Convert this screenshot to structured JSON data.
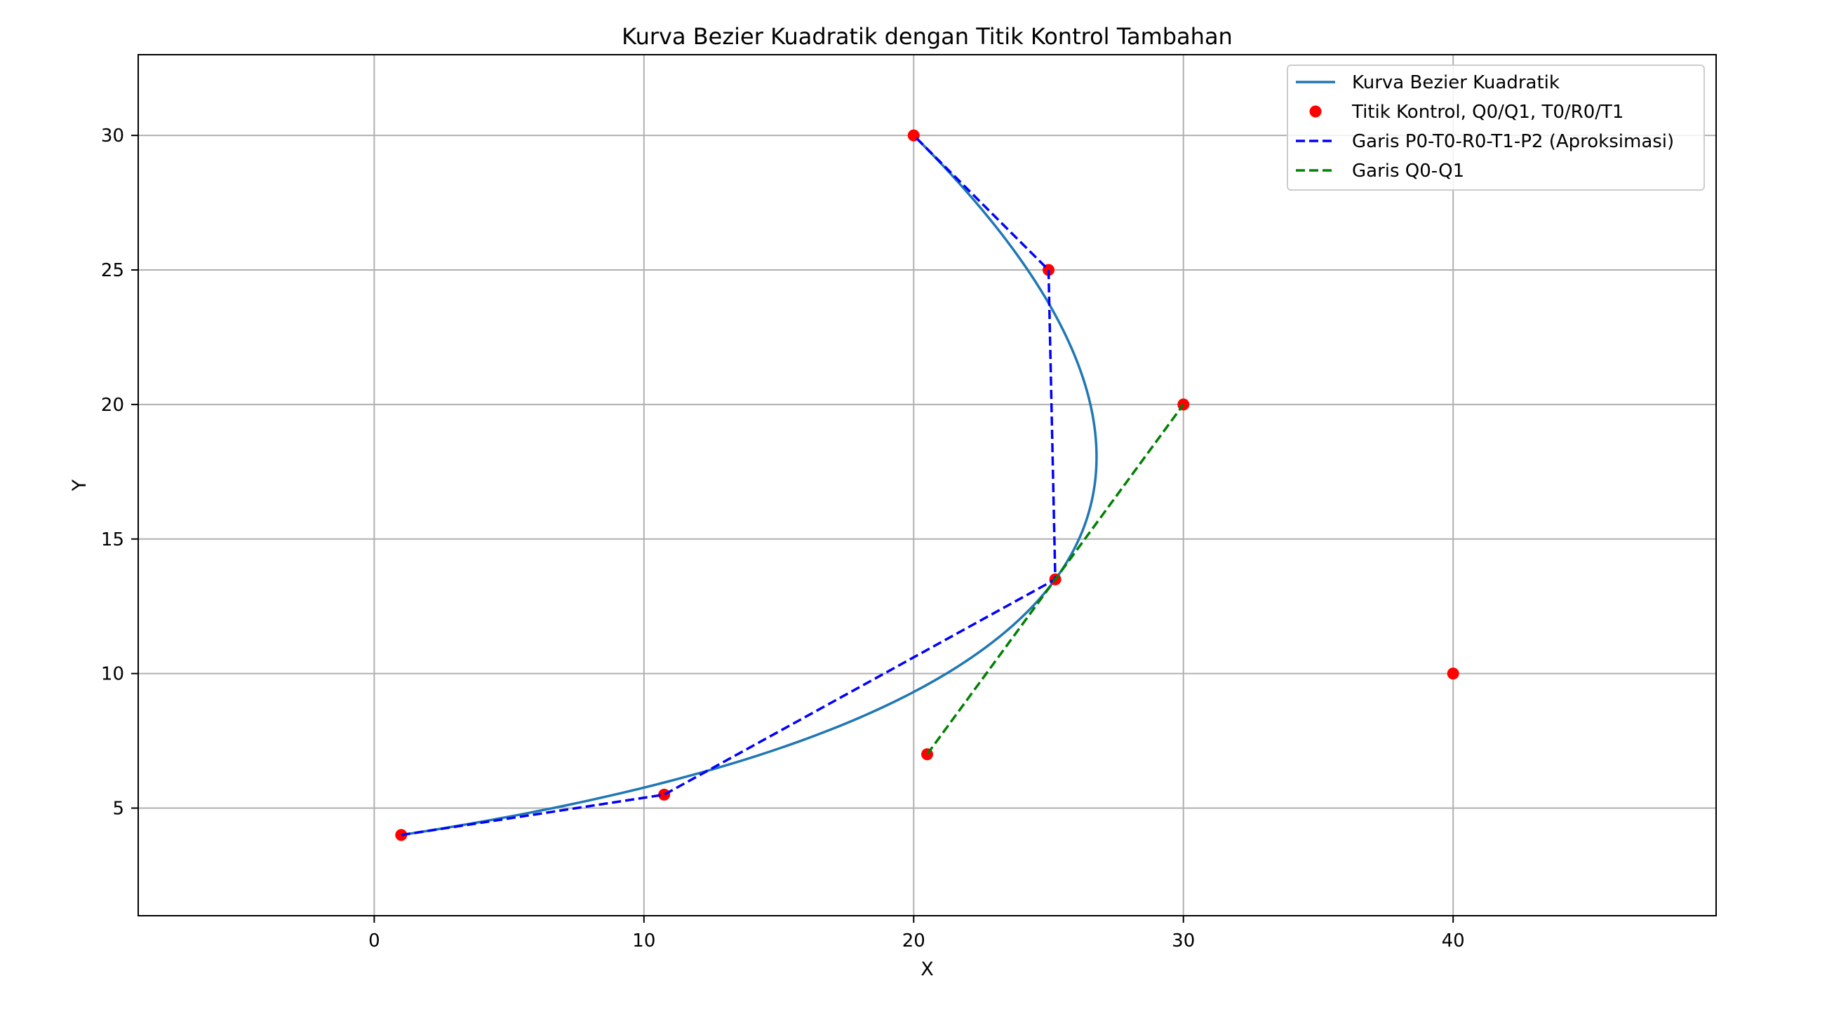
{
  "chart_data": {
    "type": "line",
    "title": "Kurva Bezier Kuadratik dengan Titik Kontrol Tambahan",
    "xlabel": "X",
    "ylabel": "Y",
    "xlim": [
      -8.75,
      49.75
    ],
    "ylim": [
      1.0,
      33.0
    ],
    "xticks": [
      0,
      10,
      20,
      30,
      40
    ],
    "yticks": [
      5,
      10,
      15,
      20,
      25,
      30
    ],
    "grid": true,
    "legend_position": "top-right",
    "bezier": {
      "name": "Kurva Bezier Kuadratik",
      "color": "#1f77b4",
      "P0": [
        1,
        4
      ],
      "P1": [
        40,
        10
      ],
      "P2": [
        20,
        30
      ]
    },
    "series": [
      {
        "name": "Titik Kontrol, Q0/Q1, T0/R0/T1",
        "kind": "scatter",
        "color": "#ff0000",
        "x": [
          1,
          40,
          20,
          20.5,
          30,
          10.75,
          25.25,
          25
        ],
        "y": [
          4,
          10,
          30,
          7,
          20,
          5.5,
          13.5,
          25
        ]
      },
      {
        "name": "Garis P0-T0-R0-T1-P2 (Aproksimasi)",
        "kind": "dashed-line",
        "color": "#0000ff",
        "x": [
          1,
          10.75,
          25.25,
          25,
          20
        ],
        "y": [
          4,
          5.5,
          13.5,
          25,
          30
        ]
      },
      {
        "name": "Garis Q0-Q1",
        "kind": "dashed-line",
        "color": "#008000",
        "x": [
          20.5,
          30
        ],
        "y": [
          7,
          20
        ]
      }
    ]
  }
}
